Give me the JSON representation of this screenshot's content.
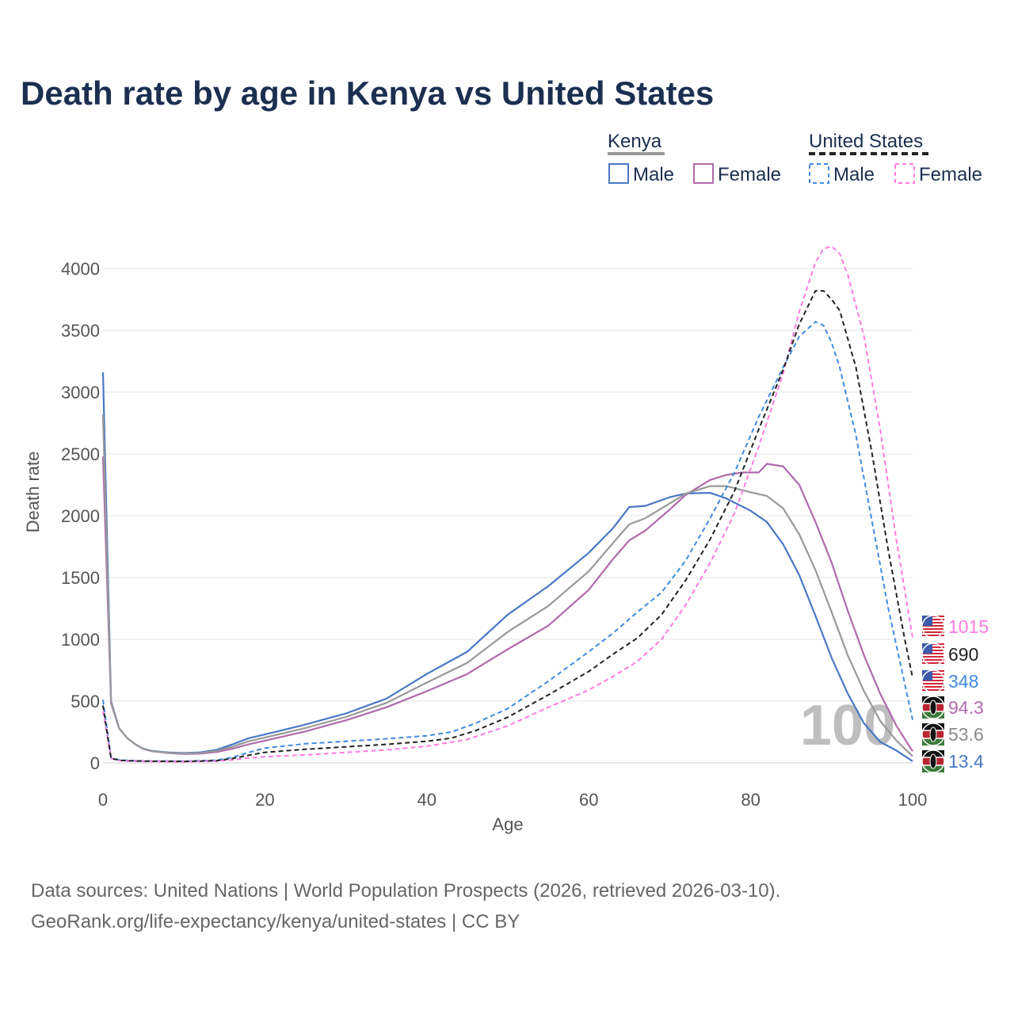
{
  "title": "Death rate by age in Kenya vs United States",
  "legend": {
    "group1": {
      "name": "Kenya",
      "male": "Male",
      "female": "Female"
    },
    "group2": {
      "name": "United States",
      "male": "Male",
      "female": "Female"
    }
  },
  "end_labels": [
    {
      "text": "1015",
      "color": "#ff7be0",
      "flag": "us"
    },
    {
      "text": "690",
      "color": "#222222",
      "flag": "us"
    },
    {
      "text": "348",
      "color": "#3f8be0",
      "flag": "us"
    },
    {
      "text": "94.3",
      "color": "#b06aac",
      "flag": "ke"
    },
    {
      "text": "53.6",
      "color": "#8a8a8a",
      "flag": "ke"
    },
    {
      "text": "13.4",
      "color": "#4a78c6",
      "flag": "ke"
    }
  ],
  "watermark": "100",
  "source_line1": "Data sources: United Nations | World Population Prospects (2026, retrieved 2026-03-10).",
  "source_line2": "GeoRank.org/life-expectancy/kenya/united-states | CC BY",
  "colors": {
    "title": "#1b2f50",
    "kenya_male": "#4a78c6",
    "kenya_female": "#b06aac",
    "kenya_total": "#999999",
    "us_male": "#3f8be0",
    "us_female": "#ff7be0",
    "us_total": "#222222",
    "grid": "#e6e6e6",
    "axis_text": "#555555"
  },
  "chart_data": {
    "type": "line",
    "xlabel": "Age",
    "ylabel": "Death rate",
    "xlim": [
      0,
      100
    ],
    "ylim": [
      0,
      4000
    ],
    "xticks": [
      0,
      20,
      40,
      60,
      80,
      100
    ],
    "yticks": [
      0,
      500,
      1000,
      1500,
      2000,
      2500,
      3000,
      3500,
      4000
    ],
    "series": [
      {
        "name": "Kenya Male",
        "style": "solid",
        "color": "#4a78c6",
        "points": [
          [
            0,
            3160
          ],
          [
            1,
            500
          ],
          [
            2,
            280
          ],
          [
            3,
            200
          ],
          [
            4,
            150
          ],
          [
            5,
            115
          ],
          [
            6,
            98
          ],
          [
            8,
            85
          ],
          [
            10,
            80
          ],
          [
            12,
            85
          ],
          [
            14,
            105
          ],
          [
            16,
            150
          ],
          [
            18,
            200
          ],
          [
            20,
            230
          ],
          [
            25,
            310
          ],
          [
            30,
            400
          ],
          [
            35,
            520
          ],
          [
            40,
            720
          ],
          [
            45,
            900
          ],
          [
            50,
            1200
          ],
          [
            55,
            1430
          ],
          [
            60,
            1700
          ],
          [
            63,
            1900
          ],
          [
            65,
            2070
          ],
          [
            67,
            2080
          ],
          [
            70,
            2150
          ],
          [
            72,
            2180
          ],
          [
            75,
            2185
          ],
          [
            77,
            2140
          ],
          [
            80,
            2040
          ],
          [
            82,
            1950
          ],
          [
            84,
            1770
          ],
          [
            86,
            1520
          ],
          [
            88,
            1190
          ],
          [
            90,
            850
          ],
          [
            92,
            560
          ],
          [
            94,
            320
          ],
          [
            96,
            170
          ],
          [
            98,
            100
          ],
          [
            100,
            13.4
          ]
        ]
      },
      {
        "name": "Kenya Female",
        "style": "solid",
        "color": "#b06aac",
        "points": [
          [
            0,
            2480
          ],
          [
            1,
            480
          ],
          [
            2,
            280
          ],
          [
            3,
            200
          ],
          [
            4,
            150
          ],
          [
            5,
            112
          ],
          [
            6,
            95
          ],
          [
            8,
            80
          ],
          [
            10,
            72
          ],
          [
            12,
            75
          ],
          [
            14,
            88
          ],
          [
            16,
            115
          ],
          [
            18,
            150
          ],
          [
            20,
            180
          ],
          [
            25,
            255
          ],
          [
            30,
            345
          ],
          [
            35,
            450
          ],
          [
            40,
            580
          ],
          [
            45,
            720
          ],
          [
            50,
            920
          ],
          [
            55,
            1110
          ],
          [
            60,
            1400
          ],
          [
            63,
            1650
          ],
          [
            65,
            1800
          ],
          [
            67,
            1880
          ],
          [
            70,
            2050
          ],
          [
            72,
            2170
          ],
          [
            75,
            2290
          ],
          [
            77,
            2330
          ],
          [
            79,
            2350
          ],
          [
            81,
            2350
          ],
          [
            82,
            2420
          ],
          [
            84,
            2400
          ],
          [
            86,
            2250
          ],
          [
            88,
            1950
          ],
          [
            90,
            1620
          ],
          [
            92,
            1230
          ],
          [
            94,
            870
          ],
          [
            96,
            560
          ],
          [
            98,
            300
          ],
          [
            100,
            94.3
          ]
        ]
      },
      {
        "name": "Kenya Total",
        "style": "solid",
        "color": "#999999",
        "points": [
          [
            0,
            2820
          ],
          [
            1,
            490
          ],
          [
            2,
            280
          ],
          [
            3,
            200
          ],
          [
            4,
            150
          ],
          [
            5,
            114
          ],
          [
            6,
            96
          ],
          [
            8,
            82
          ],
          [
            10,
            76
          ],
          [
            12,
            80
          ],
          [
            14,
            96
          ],
          [
            16,
            132
          ],
          [
            18,
            175
          ],
          [
            20,
            205
          ],
          [
            25,
            282
          ],
          [
            30,
            372
          ],
          [
            35,
            485
          ],
          [
            40,
            650
          ],
          [
            45,
            810
          ],
          [
            50,
            1060
          ],
          [
            55,
            1270
          ],
          [
            60,
            1550
          ],
          [
            63,
            1780
          ],
          [
            65,
            1930
          ],
          [
            67,
            1980
          ],
          [
            70,
            2100
          ],
          [
            72,
            2180
          ],
          [
            75,
            2240
          ],
          [
            77,
            2240
          ],
          [
            80,
            2190
          ],
          [
            82,
            2160
          ],
          [
            84,
            2060
          ],
          [
            86,
            1850
          ],
          [
            88,
            1560
          ],
          [
            90,
            1220
          ],
          [
            92,
            870
          ],
          [
            94,
            580
          ],
          [
            96,
            340
          ],
          [
            98,
            180
          ],
          [
            100,
            53.6
          ]
        ]
      },
      {
        "name": "United States Male",
        "style": "dashed",
        "color": "#3f8be0",
        "points": [
          [
            0,
            510
          ],
          [
            1,
            40
          ],
          [
            2,
            25
          ],
          [
            3,
            20
          ],
          [
            5,
            16
          ],
          [
            10,
            14
          ],
          [
            14,
            22
          ],
          [
            16,
            45
          ],
          [
            18,
            85
          ],
          [
            20,
            120
          ],
          [
            25,
            155
          ],
          [
            30,
            175
          ],
          [
            35,
            195
          ],
          [
            40,
            220
          ],
          [
            43,
            250
          ],
          [
            46,
            320
          ],
          [
            50,
            440
          ],
          [
            55,
            660
          ],
          [
            60,
            900
          ],
          [
            63,
            1050
          ],
          [
            66,
            1220
          ],
          [
            69,
            1380
          ],
          [
            72,
            1640
          ],
          [
            75,
            1980
          ],
          [
            78,
            2350
          ],
          [
            81,
            2800
          ],
          [
            84,
            3200
          ],
          [
            86,
            3450
          ],
          [
            88,
            3570
          ],
          [
            89,
            3540
          ],
          [
            90,
            3400
          ],
          [
            91,
            3200
          ],
          [
            93,
            2650
          ],
          [
            95,
            1950
          ],
          [
            97,
            1250
          ],
          [
            99,
            650
          ],
          [
            100,
            348
          ]
        ]
      },
      {
        "name": "United States Female",
        "style": "dashed",
        "color": "#ff7be0",
        "points": [
          [
            0,
            420
          ],
          [
            1,
            35
          ],
          [
            2,
            20
          ],
          [
            3,
            15
          ],
          [
            5,
            12
          ],
          [
            10,
            10
          ],
          [
            14,
            14
          ],
          [
            16,
            25
          ],
          [
            18,
            40
          ],
          [
            20,
            50
          ],
          [
            25,
            65
          ],
          [
            30,
            85
          ],
          [
            35,
            105
          ],
          [
            40,
            135
          ],
          [
            45,
            190
          ],
          [
            50,
            300
          ],
          [
            55,
            450
          ],
          [
            60,
            590
          ],
          [
            63,
            700
          ],
          [
            66,
            820
          ],
          [
            69,
            1000
          ],
          [
            72,
            1280
          ],
          [
            75,
            1620
          ],
          [
            78,
            2020
          ],
          [
            81,
            2560
          ],
          [
            84,
            3150
          ],
          [
            86,
            3650
          ],
          [
            88,
            4050
          ],
          [
            89,
            4160
          ],
          [
            90,
            4180
          ],
          [
            91,
            4120
          ],
          [
            92,
            3950
          ],
          [
            94,
            3450
          ],
          [
            96,
            2700
          ],
          [
            98,
            1800
          ],
          [
            100,
            1015
          ]
        ]
      },
      {
        "name": "United States Total",
        "style": "dashed",
        "color": "#222222",
        "points": [
          [
            0,
            465
          ],
          [
            1,
            38
          ],
          [
            2,
            22
          ],
          [
            3,
            18
          ],
          [
            5,
            14
          ],
          [
            10,
            12
          ],
          [
            14,
            18
          ],
          [
            16,
            35
          ],
          [
            18,
            62
          ],
          [
            20,
            85
          ],
          [
            25,
            110
          ],
          [
            30,
            130
          ],
          [
            35,
            150
          ],
          [
            40,
            175
          ],
          [
            43,
            200
          ],
          [
            46,
            260
          ],
          [
            50,
            370
          ],
          [
            55,
            550
          ],
          [
            60,
            740
          ],
          [
            63,
            880
          ],
          [
            66,
            1010
          ],
          [
            69,
            1200
          ],
          [
            72,
            1480
          ],
          [
            75,
            1810
          ],
          [
            78,
            2200
          ],
          [
            81,
            2700
          ],
          [
            84,
            3180
          ],
          [
            86,
            3550
          ],
          [
            88,
            3820
          ],
          [
            89,
            3820
          ],
          [
            90,
            3750
          ],
          [
            91,
            3660
          ],
          [
            93,
            3200
          ],
          [
            95,
            2500
          ],
          [
            97,
            1720
          ],
          [
            99,
            1010
          ],
          [
            100,
            690
          ]
        ]
      }
    ]
  }
}
